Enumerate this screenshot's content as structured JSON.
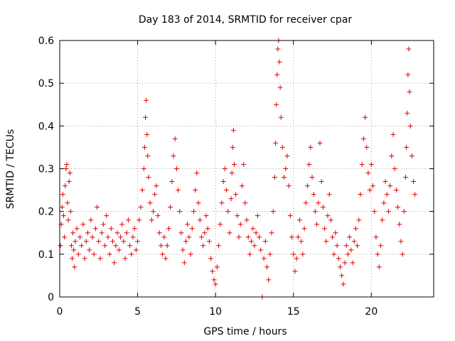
{
  "chart_data": {
    "type": "scatter",
    "title": "Day 183 of 2014, SRMTID for receiver cpar",
    "xlabel": "GPS time / hours",
    "ylabel": "SRMTID / TECUs",
    "xlim": [
      0,
      24
    ],
    "ylim": [
      0,
      0.6
    ],
    "xticks": [
      0,
      5,
      10,
      15,
      20
    ],
    "xtick_labels": [
      "0",
      "5",
      "10",
      "15",
      "20"
    ],
    "yticks": [
      0,
      0.1,
      0.2,
      0.3,
      0.4,
      0.5,
      0.6
    ],
    "ytick_labels": [
      "0",
      "0.1",
      "0.2",
      "0.3",
      "0.4",
      "0.5",
      "0.6"
    ],
    "grid": true,
    "marker": "plus",
    "color": "#e00000",
    "series": [
      {
        "name": "SRMTID",
        "points": [
          [
            0.05,
            0.12
          ],
          [
            0.1,
            0.17
          ],
          [
            0.15,
            0.21
          ],
          [
            0.2,
            0.24
          ],
          [
            0.25,
            0.19
          ],
          [
            0.3,
            0.14
          ],
          [
            0.35,
            0.26
          ],
          [
            0.4,
            0.3
          ],
          [
            0.45,
            0.31
          ],
          [
            0.5,
            0.22
          ],
          [
            0.55,
            0.18
          ],
          [
            0.6,
            0.27
          ],
          [
            0.65,
            0.29
          ],
          [
            0.7,
            0.2
          ],
          [
            0.75,
            0.12
          ],
          [
            0.8,
            0.09
          ],
          [
            0.85,
            0.15
          ],
          [
            0.9,
            0.11
          ],
          [
            0.95,
            0.07
          ],
          [
            1.0,
            0.13
          ],
          [
            1.1,
            0.16
          ],
          [
            1.2,
            0.1
          ],
          [
            1.3,
            0.14
          ],
          [
            1.4,
            0.12
          ],
          [
            1.5,
            0.17
          ],
          [
            1.6,
            0.09
          ],
          [
            1.7,
            0.13
          ],
          [
            1.8,
            0.15
          ],
          [
            1.9,
            0.11
          ],
          [
            2.0,
            0.18
          ],
          [
            2.1,
            0.14
          ],
          [
            2.2,
            0.1
          ],
          [
            2.3,
            0.16
          ],
          [
            2.4,
            0.21
          ],
          [
            2.5,
            0.13
          ],
          [
            2.6,
            0.09
          ],
          [
            2.7,
            0.15
          ],
          [
            2.8,
            0.17
          ],
          [
            2.9,
            0.12
          ],
          [
            3.0,
            0.19
          ],
          [
            3.1,
            0.14
          ],
          [
            3.2,
            0.1
          ],
          [
            3.3,
            0.16
          ],
          [
            3.4,
            0.13
          ],
          [
            3.5,
            0.08
          ],
          [
            3.6,
            0.12
          ],
          [
            3.7,
            0.15
          ],
          [
            3.8,
            0.11
          ],
          [
            3.9,
            0.14
          ],
          [
            4.0,
            0.17
          ],
          [
            4.1,
            0.13
          ],
          [
            4.2,
            0.09
          ],
          [
            4.3,
            0.15
          ],
          [
            4.4,
            0.18
          ],
          [
            4.5,
            0.12
          ],
          [
            4.6,
            0.1
          ],
          [
            4.7,
            0.14
          ],
          [
            4.8,
            0.16
          ],
          [
            4.9,
            0.11
          ],
          [
            5.0,
            0.13
          ],
          [
            5.1,
            0.18
          ],
          [
            5.2,
            0.21
          ],
          [
            5.3,
            0.25
          ],
          [
            5.4,
            0.3
          ],
          [
            5.45,
            0.35
          ],
          [
            5.5,
            0.42
          ],
          [
            5.55,
            0.46
          ],
          [
            5.6,
            0.38
          ],
          [
            5.65,
            0.33
          ],
          [
            5.7,
            0.28
          ],
          [
            5.8,
            0.22
          ],
          [
            5.9,
            0.18
          ],
          [
            6.0,
            0.2
          ],
          [
            6.1,
            0.24
          ],
          [
            6.2,
            0.26
          ],
          [
            6.3,
            0.19
          ],
          [
            6.4,
            0.15
          ],
          [
            6.5,
            0.12
          ],
          [
            6.6,
            0.1
          ],
          [
            6.7,
            0.14
          ],
          [
            6.8,
            0.09
          ],
          [
            6.9,
            0.12
          ],
          [
            7.0,
            0.16
          ],
          [
            7.1,
            0.21
          ],
          [
            7.2,
            0.27
          ],
          [
            7.3,
            0.33
          ],
          [
            7.4,
            0.37
          ],
          [
            7.5,
            0.3
          ],
          [
            7.6,
            0.25
          ],
          [
            7.7,
            0.2
          ],
          [
            7.8,
            0.15
          ],
          [
            7.9,
            0.11
          ],
          [
            8.0,
            0.08
          ],
          [
            8.1,
            0.13
          ],
          [
            8.2,
            0.17
          ],
          [
            8.3,
            0.14
          ],
          [
            8.4,
            0.1
          ],
          [
            8.5,
            0.16
          ],
          [
            8.6,
            0.2
          ],
          [
            8.7,
            0.25
          ],
          [
            8.8,
            0.29
          ],
          [
            8.9,
            0.22
          ],
          [
            9.0,
            0.18
          ],
          [
            9.1,
            0.14
          ],
          [
            9.2,
            0.12
          ],
          [
            9.3,
            0.15
          ],
          [
            9.4,
            0.19
          ],
          [
            9.5,
            0.16
          ],
          [
            9.6,
            0.13
          ],
          [
            9.7,
            0.09
          ],
          [
            9.8,
            0.06
          ],
          [
            9.9,
            0.04
          ],
          [
            10.0,
            0.03
          ],
          [
            10.1,
            0.07
          ],
          [
            10.2,
            0.12
          ],
          [
            10.3,
            0.17
          ],
          [
            10.4,
            0.22
          ],
          [
            10.5,
            0.27
          ],
          [
            10.6,
            0.3
          ],
          [
            10.7,
            0.25
          ],
          [
            10.8,
            0.2
          ],
          [
            10.9,
            0.15
          ],
          [
            11.0,
            0.23
          ],
          [
            11.05,
            0.29
          ],
          [
            11.1,
            0.35
          ],
          [
            11.15,
            0.39
          ],
          [
            11.2,
            0.31
          ],
          [
            11.3,
            0.24
          ],
          [
            11.4,
            0.19
          ],
          [
            11.5,
            0.14
          ],
          [
            11.6,
            0.17
          ],
          [
            11.7,
            0.26
          ],
          [
            11.8,
            0.31
          ],
          [
            11.9,
            0.22
          ],
          [
            12.0,
            0.18
          ],
          [
            12.1,
            0.14
          ],
          [
            12.2,
            0.1
          ],
          [
            12.3,
            0.13
          ],
          [
            12.4,
            0.16
          ],
          [
            12.5,
            0.12
          ],
          [
            12.6,
            0.15
          ],
          [
            12.7,
            0.19
          ],
          [
            12.8,
            0.14
          ],
          [
            12.9,
            0.11
          ],
          [
            13.0,
            0.0
          ],
          [
            13.1,
            0.09
          ],
          [
            13.2,
            0.13
          ],
          [
            13.3,
            0.07
          ],
          [
            13.4,
            0.04
          ],
          [
            13.5,
            0.1
          ],
          [
            13.6,
            0.15
          ],
          [
            13.7,
            0.2
          ],
          [
            13.8,
            0.28
          ],
          [
            13.85,
            0.36
          ],
          [
            13.9,
            0.45
          ],
          [
            13.95,
            0.52
          ],
          [
            14.0,
            0.58
          ],
          [
            14.05,
            0.6
          ],
          [
            14.1,
            0.55
          ],
          [
            14.15,
            0.49
          ],
          [
            14.2,
            0.42
          ],
          [
            14.3,
            0.35
          ],
          [
            14.4,
            0.28
          ],
          [
            14.5,
            0.3
          ],
          [
            14.6,
            0.33
          ],
          [
            14.7,
            0.26
          ],
          [
            14.8,
            0.19
          ],
          [
            14.9,
            0.14
          ],
          [
            15.0,
            0.1
          ],
          [
            15.1,
            0.06
          ],
          [
            15.2,
            0.09
          ],
          [
            15.3,
            0.14
          ],
          [
            15.4,
            0.18
          ],
          [
            15.5,
            0.13
          ],
          [
            15.6,
            0.1
          ],
          [
            15.7,
            0.16
          ],
          [
            15.8,
            0.22
          ],
          [
            15.9,
            0.26
          ],
          [
            16.0,
            0.31
          ],
          [
            16.1,
            0.35
          ],
          [
            16.2,
            0.28
          ],
          [
            16.3,
            0.24
          ],
          [
            16.4,
            0.2
          ],
          [
            16.5,
            0.17
          ],
          [
            16.6,
            0.22
          ],
          [
            16.7,
            0.36
          ],
          [
            16.8,
            0.27
          ],
          [
            16.9,
            0.21
          ],
          [
            17.0,
            0.16
          ],
          [
            17.1,
            0.13
          ],
          [
            17.2,
            0.19
          ],
          [
            17.3,
            0.24
          ],
          [
            17.4,
            0.18
          ],
          [
            17.5,
            0.14
          ],
          [
            17.6,
            0.1
          ],
          [
            17.7,
            0.15
          ],
          [
            17.8,
            0.12
          ],
          [
            17.9,
            0.09
          ],
          [
            18.0,
            0.07
          ],
          [
            18.1,
            0.05
          ],
          [
            18.2,
            0.03
          ],
          [
            18.3,
            0.08
          ],
          [
            18.4,
            0.12
          ],
          [
            18.5,
            0.1
          ],
          [
            18.6,
            0.14
          ],
          [
            18.7,
            0.11
          ],
          [
            18.8,
            0.08
          ],
          [
            18.9,
            0.13
          ],
          [
            19.0,
            0.16
          ],
          [
            19.1,
            0.12
          ],
          [
            19.2,
            0.18
          ],
          [
            19.3,
            0.24
          ],
          [
            19.4,
            0.31
          ],
          [
            19.5,
            0.37
          ],
          [
            19.6,
            0.42
          ],
          [
            19.7,
            0.35
          ],
          [
            19.8,
            0.29
          ],
          [
            19.9,
            0.25
          ],
          [
            20.0,
            0.31
          ],
          [
            20.1,
            0.26
          ],
          [
            20.2,
            0.2
          ],
          [
            20.3,
            0.14
          ],
          [
            20.4,
            0.1
          ],
          [
            20.5,
            0.07
          ],
          [
            20.6,
            0.12
          ],
          [
            20.7,
            0.18
          ],
          [
            20.8,
            0.22
          ],
          [
            20.9,
            0.27
          ],
          [
            21.0,
            0.24
          ],
          [
            21.1,
            0.2
          ],
          [
            21.2,
            0.26
          ],
          [
            21.3,
            0.33
          ],
          [
            21.4,
            0.38
          ],
          [
            21.5,
            0.3
          ],
          [
            21.6,
            0.25
          ],
          [
            21.7,
            0.21
          ],
          [
            21.8,
            0.17
          ],
          [
            21.9,
            0.13
          ],
          [
            22.0,
            0.1
          ],
          [
            22.1,
            0.2
          ],
          [
            22.2,
            0.28
          ],
          [
            22.25,
            0.35
          ],
          [
            22.3,
            0.43
          ],
          [
            22.35,
            0.52
          ],
          [
            22.4,
            0.58
          ],
          [
            22.45,
            0.48
          ],
          [
            22.5,
            0.4
          ],
          [
            22.6,
            0.33
          ],
          [
            22.7,
            0.27
          ],
          [
            22.8,
            0.24
          ]
        ]
      }
    ]
  }
}
